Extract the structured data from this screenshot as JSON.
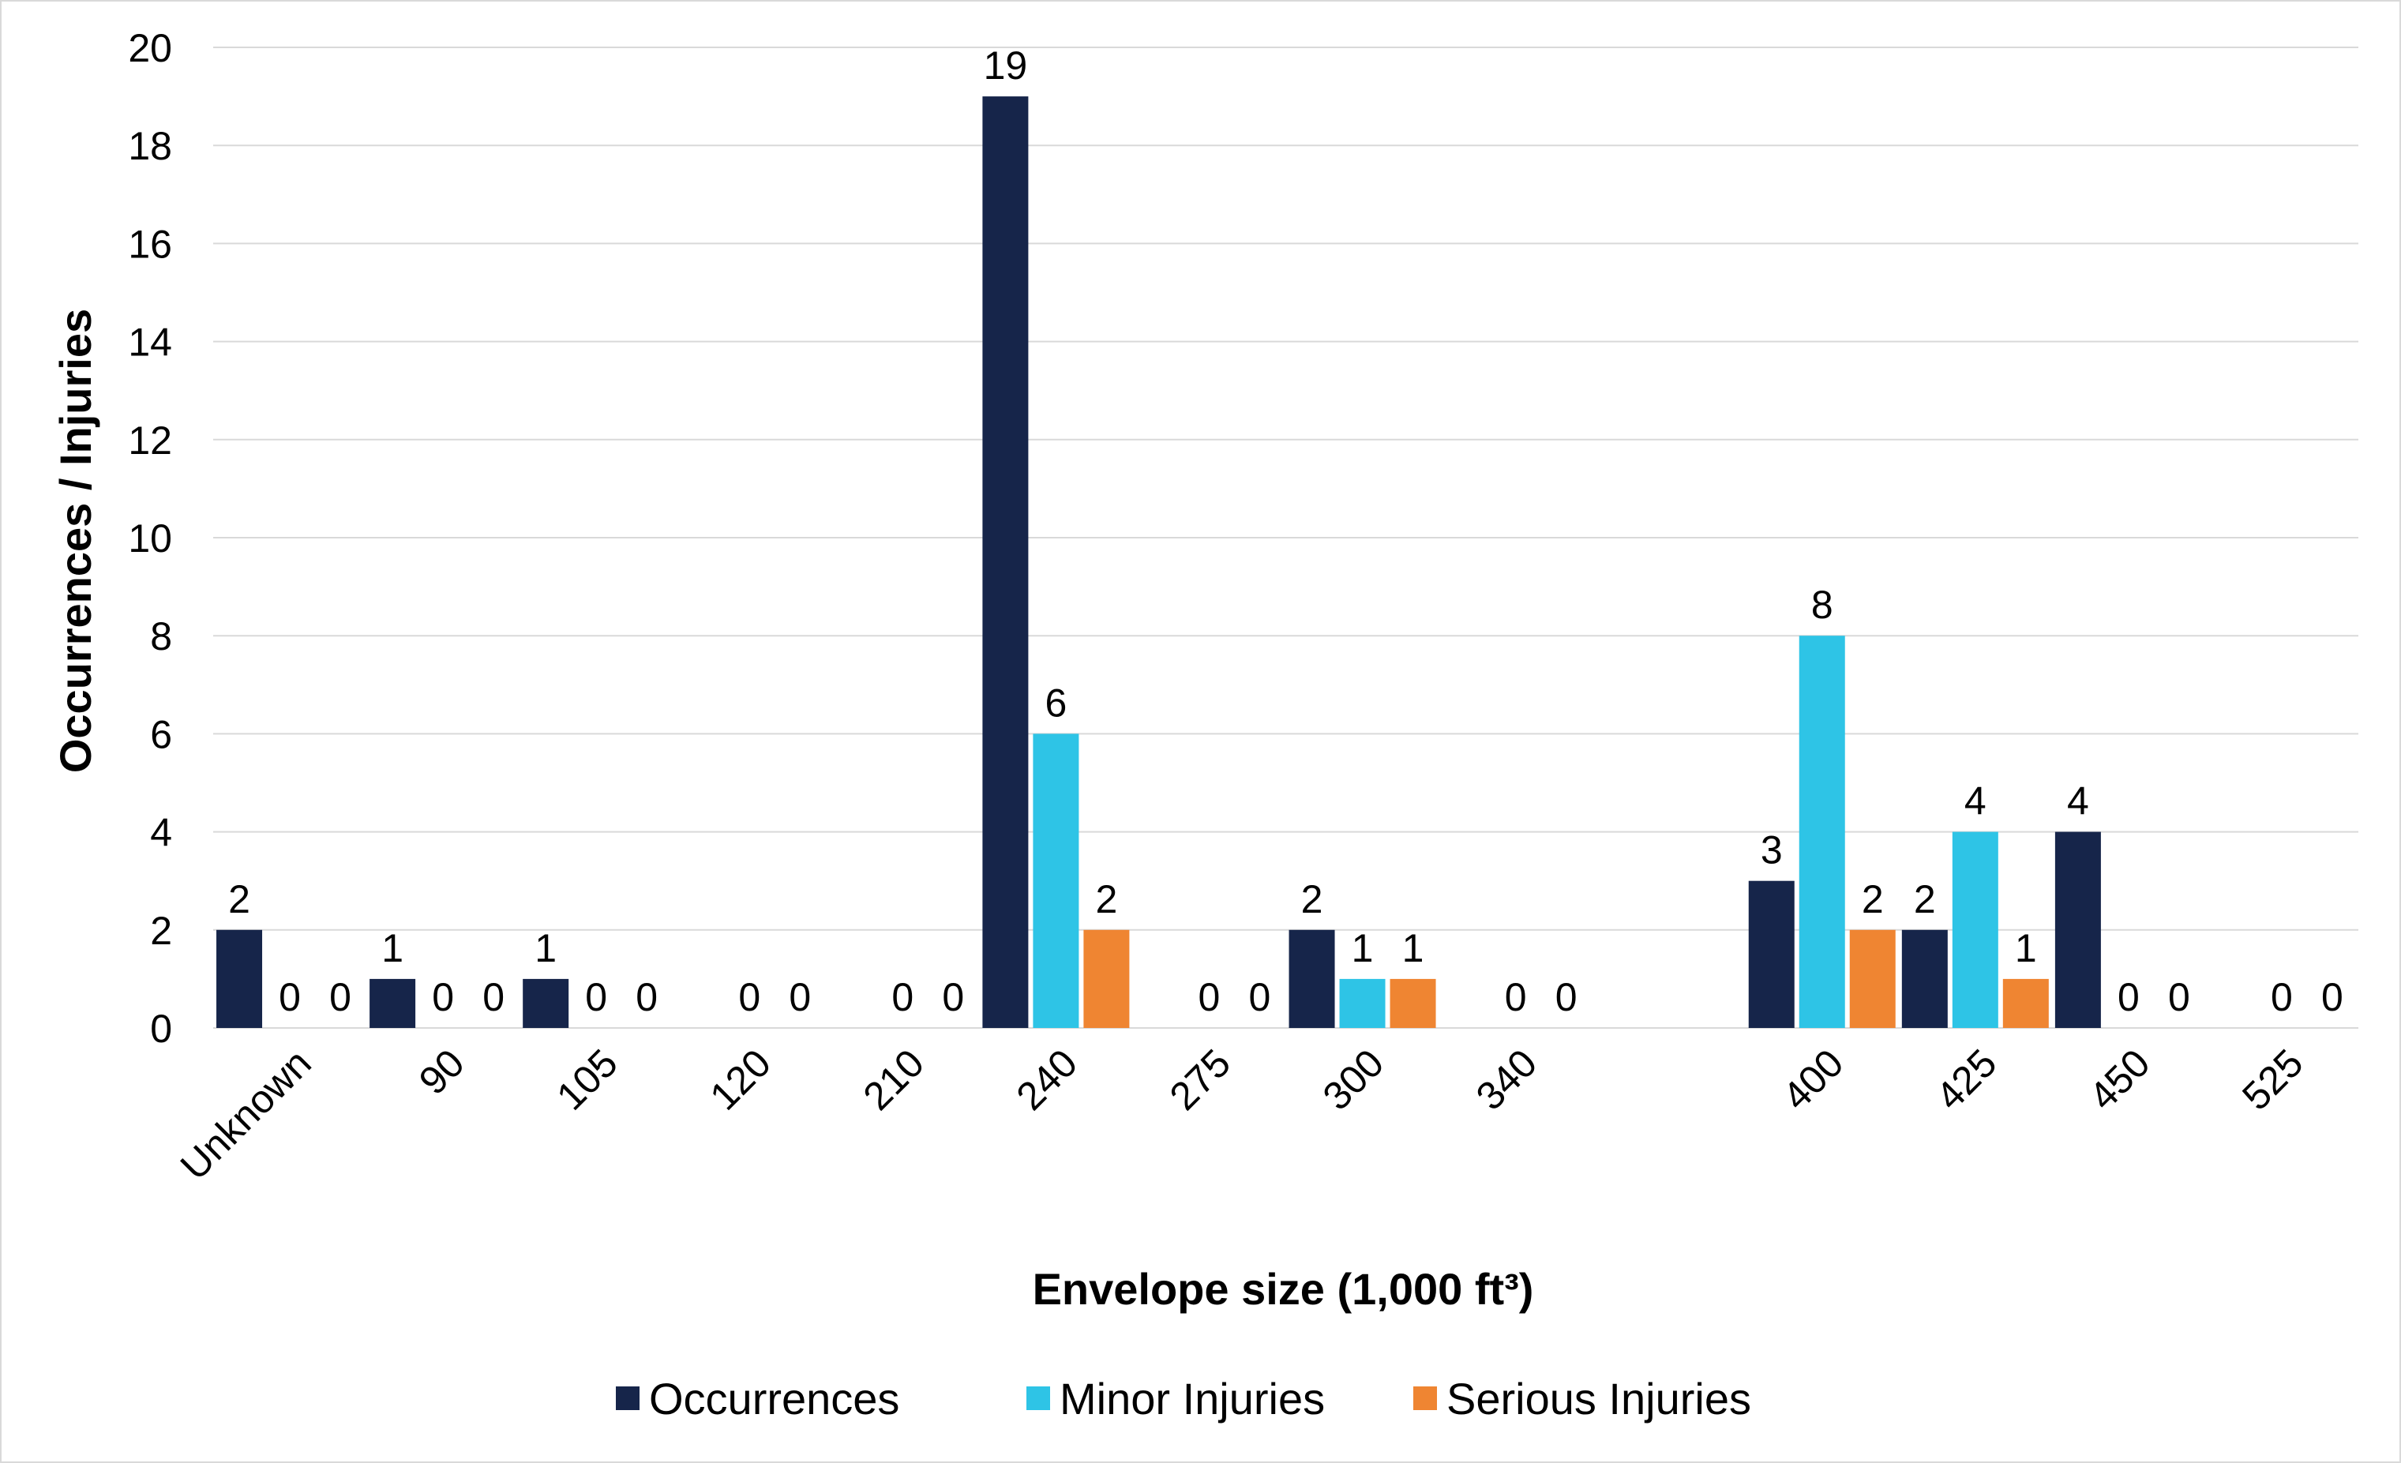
{
  "chart_data": {
    "type": "bar",
    "categories": [
      "Unknown",
      "90",
      "105",
      "120",
      "210",
      "240",
      "275",
      "300",
      "340",
      "",
      "400",
      "425",
      "450",
      "525"
    ],
    "series": [
      {
        "name": "Occurrences",
        "values": [
          2,
          1,
          1,
          null,
          null,
          19,
          null,
          2,
          null,
          null,
          3,
          2,
          4,
          null
        ],
        "labels": [
          "2",
          "1",
          "1",
          "",
          "",
          "19",
          "",
          "2",
          "",
          "",
          "3",
          "2",
          "4",
          ""
        ]
      },
      {
        "name": "Minor Injuries",
        "values": [
          0,
          0,
          0,
          0,
          0,
          6,
          0,
          1,
          0,
          null,
          8,
          4,
          0,
          0
        ],
        "labels": [
          "0",
          "0",
          "0",
          "0",
          "0",
          "6",
          "0",
          "1",
          "0",
          "",
          "8",
          "4",
          "0",
          "0"
        ]
      },
      {
        "name": "Serious Injuries",
        "values": [
          0,
          0,
          0,
          0,
          0,
          2,
          0,
          1,
          0,
          null,
          2,
          1,
          0,
          0
        ],
        "labels": [
          "0",
          "0",
          "0",
          "0",
          "0",
          "2",
          "0",
          "1",
          "0",
          "",
          "2",
          "1",
          "0",
          "0"
        ]
      }
    ],
    "colors": [
      "#16254a",
      "#2ec4e6",
      "#ef8532"
    ],
    "xlabel": "Envelope size (1,000 ft³)",
    "ylabel": "Occurrences / Injuries",
    "ylim": [
      0,
      20
    ],
    "yticks": [
      "0",
      "2",
      "4",
      "6",
      "8",
      "10",
      "12",
      "14",
      "16",
      "18",
      "20"
    ],
    "grid": true,
    "legend": "bottom"
  }
}
